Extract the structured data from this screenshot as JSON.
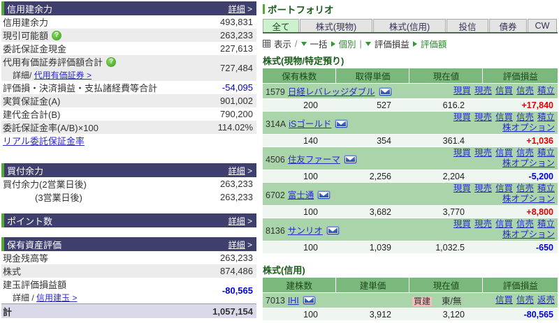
{
  "colors": {
    "navy_header": "#3f3f6e",
    "green_accent": "#55aa33",
    "table_header_green": "#7bb87b",
    "stock_row_green": "#aad4aa",
    "data_row_green": "#eff5ef",
    "stripe_gray": "#ececec",
    "total_row_lavender": "#d9d9ea",
    "link_blue": "#2a2ac8",
    "positive_red": "#e00000",
    "negative_blue": "#0000dd",
    "active_tab_green": "#ccf2cc",
    "badge_pink": "#f7bcbc"
  },
  "left_panel": {
    "sections": [
      {
        "key": "margin-capacity",
        "title": "信用建余力",
        "detail_label": "詳細",
        "striped": true,
        "gap_big": true,
        "rows": [
          {
            "label": "信用建余力",
            "value": "493,831"
          },
          {
            "label": "現引可能額",
            "help_icon": true,
            "value": "263,233"
          },
          {
            "label": "委託保証金現金",
            "value": "227,613"
          },
          {
            "label": "代用有価証券評価額合計",
            "help_icon": true,
            "sub_prefix": "詳細/ ",
            "sub_link": "代用有価証券 >",
            "value": "727,484"
          },
          {
            "label": "評価損・決済損益・支払諸経費等合計",
            "value": "-54,095",
            "value_style": "neg"
          },
          {
            "label": "実質保証金(A)",
            "value": "901,002"
          },
          {
            "label": "建代金合計(B)",
            "value": "790,200"
          },
          {
            "label": "委託保証金率(A/B)×100",
            "value": "114.02%"
          },
          {
            "label": "リアル委託保証金率",
            "label_is_link": true
          }
        ]
      },
      {
        "key": "buying-power",
        "title": "買付余力",
        "detail_label": "詳細",
        "striped": false,
        "rows": [
          {
            "label": "買付余力(2営業日後)",
            "value": "263,233"
          },
          {
            "label": "(3営業日後)",
            "indent": true,
            "value": "263,233"
          }
        ]
      },
      {
        "key": "points",
        "title": "ポイント数",
        "detail_label": "詳細",
        "striped": false,
        "rows": []
      },
      {
        "key": "asset-valuation",
        "title": "保有資産評価",
        "detail_label": "詳細",
        "striped": true,
        "rows": [
          {
            "label": "現金残高等",
            "value": "263,233"
          },
          {
            "label": "株式",
            "value": "874,486"
          },
          {
            "label": "建玉評価損益額",
            "sub_prefix": "詳細 / ",
            "sub_link": "信用建玉 >",
            "value": "-80,565",
            "value_style": "neg-bold"
          }
        ],
        "total": {
          "label": "計",
          "value": "1,057,154"
        }
      }
    ]
  },
  "portfolio": {
    "title": "ポートフォリオ",
    "tabs": [
      {
        "key": "all",
        "label": "全て",
        "active": true
      },
      {
        "key": "stock-cash",
        "label": "株式(現物)",
        "active": false
      },
      {
        "key": "stock-margin",
        "label": "株式(信用)",
        "active": false
      },
      {
        "key": "funds",
        "label": "投信",
        "active": false
      },
      {
        "key": "bonds",
        "label": "債券",
        "active": false
      },
      {
        "key": "cw",
        "label": "CW",
        "active": false
      }
    ],
    "toolbar": {
      "display_label": "表示",
      "slash": "/",
      "bulk_label": "一括",
      "individual_label": "個別",
      "pipe": "|",
      "pl_label": "評価損益",
      "value_label": "評価額"
    },
    "cash_section": {
      "title": "株式(現物/特定預り)",
      "headers": [
        "保有株数",
        "取得単価",
        "現在値",
        "評価損益"
      ],
      "holdings": [
        {
          "code": "1579",
          "name": "日経レバレッジダブル",
          "action_links": [
            "現買",
            "現売",
            "信買",
            "信売",
            "積立"
          ],
          "action_links2": [],
          "qty": "200",
          "cost": "527",
          "price": "616.2",
          "pl": "+17,840",
          "pl_style": "pos"
        },
        {
          "code": "314A",
          "name": "iSゴールド",
          "action_links": [
            "現買",
            "現売",
            "信買",
            "信売",
            "積立"
          ],
          "action_links2": [
            "株オプション"
          ],
          "qty": "140",
          "cost": "354",
          "price": "361.4",
          "pl": "+1,036",
          "pl_style": "pos"
        },
        {
          "code": "4506",
          "name": "住友ファーマ",
          "action_links": [
            "現買",
            "現売",
            "信買",
            "信売",
            "積立"
          ],
          "action_links2": [
            "株オプション"
          ],
          "qty": "100",
          "cost": "2,256",
          "price": "2,204",
          "pl": "-5,200",
          "pl_style": "neg"
        },
        {
          "code": "6702",
          "name": "富士通",
          "action_links": [
            "現買",
            "現売",
            "信買",
            "信売",
            "積立"
          ],
          "action_links2": [
            "株オプション"
          ],
          "qty": "100",
          "cost": "3,682",
          "price": "3,770",
          "pl": "+8,800",
          "pl_style": "pos"
        },
        {
          "code": "8136",
          "name": "サンリオ",
          "action_links": [
            "現買",
            "現売",
            "信買",
            "信売",
            "積立"
          ],
          "action_links2": [
            "株オプション"
          ],
          "qty": "100",
          "cost": "1,039",
          "price": "1,032.5",
          "pl": "-650",
          "pl_style": "neg"
        }
      ]
    },
    "margin_section": {
      "title": "株式(信用)",
      "headers": [
        "建株数",
        "建単価",
        "現在値",
        "評価損益"
      ],
      "holdings": [
        {
          "code": "7013",
          "name": "IHI",
          "badge": "買建",
          "market": "東/無",
          "action_links": [
            "信買",
            "信売",
            "返売"
          ],
          "qty": "100",
          "cost": "3,912",
          "price": "3,120",
          "pl": "-80,565",
          "pl_style": "neg"
        }
      ]
    }
  }
}
